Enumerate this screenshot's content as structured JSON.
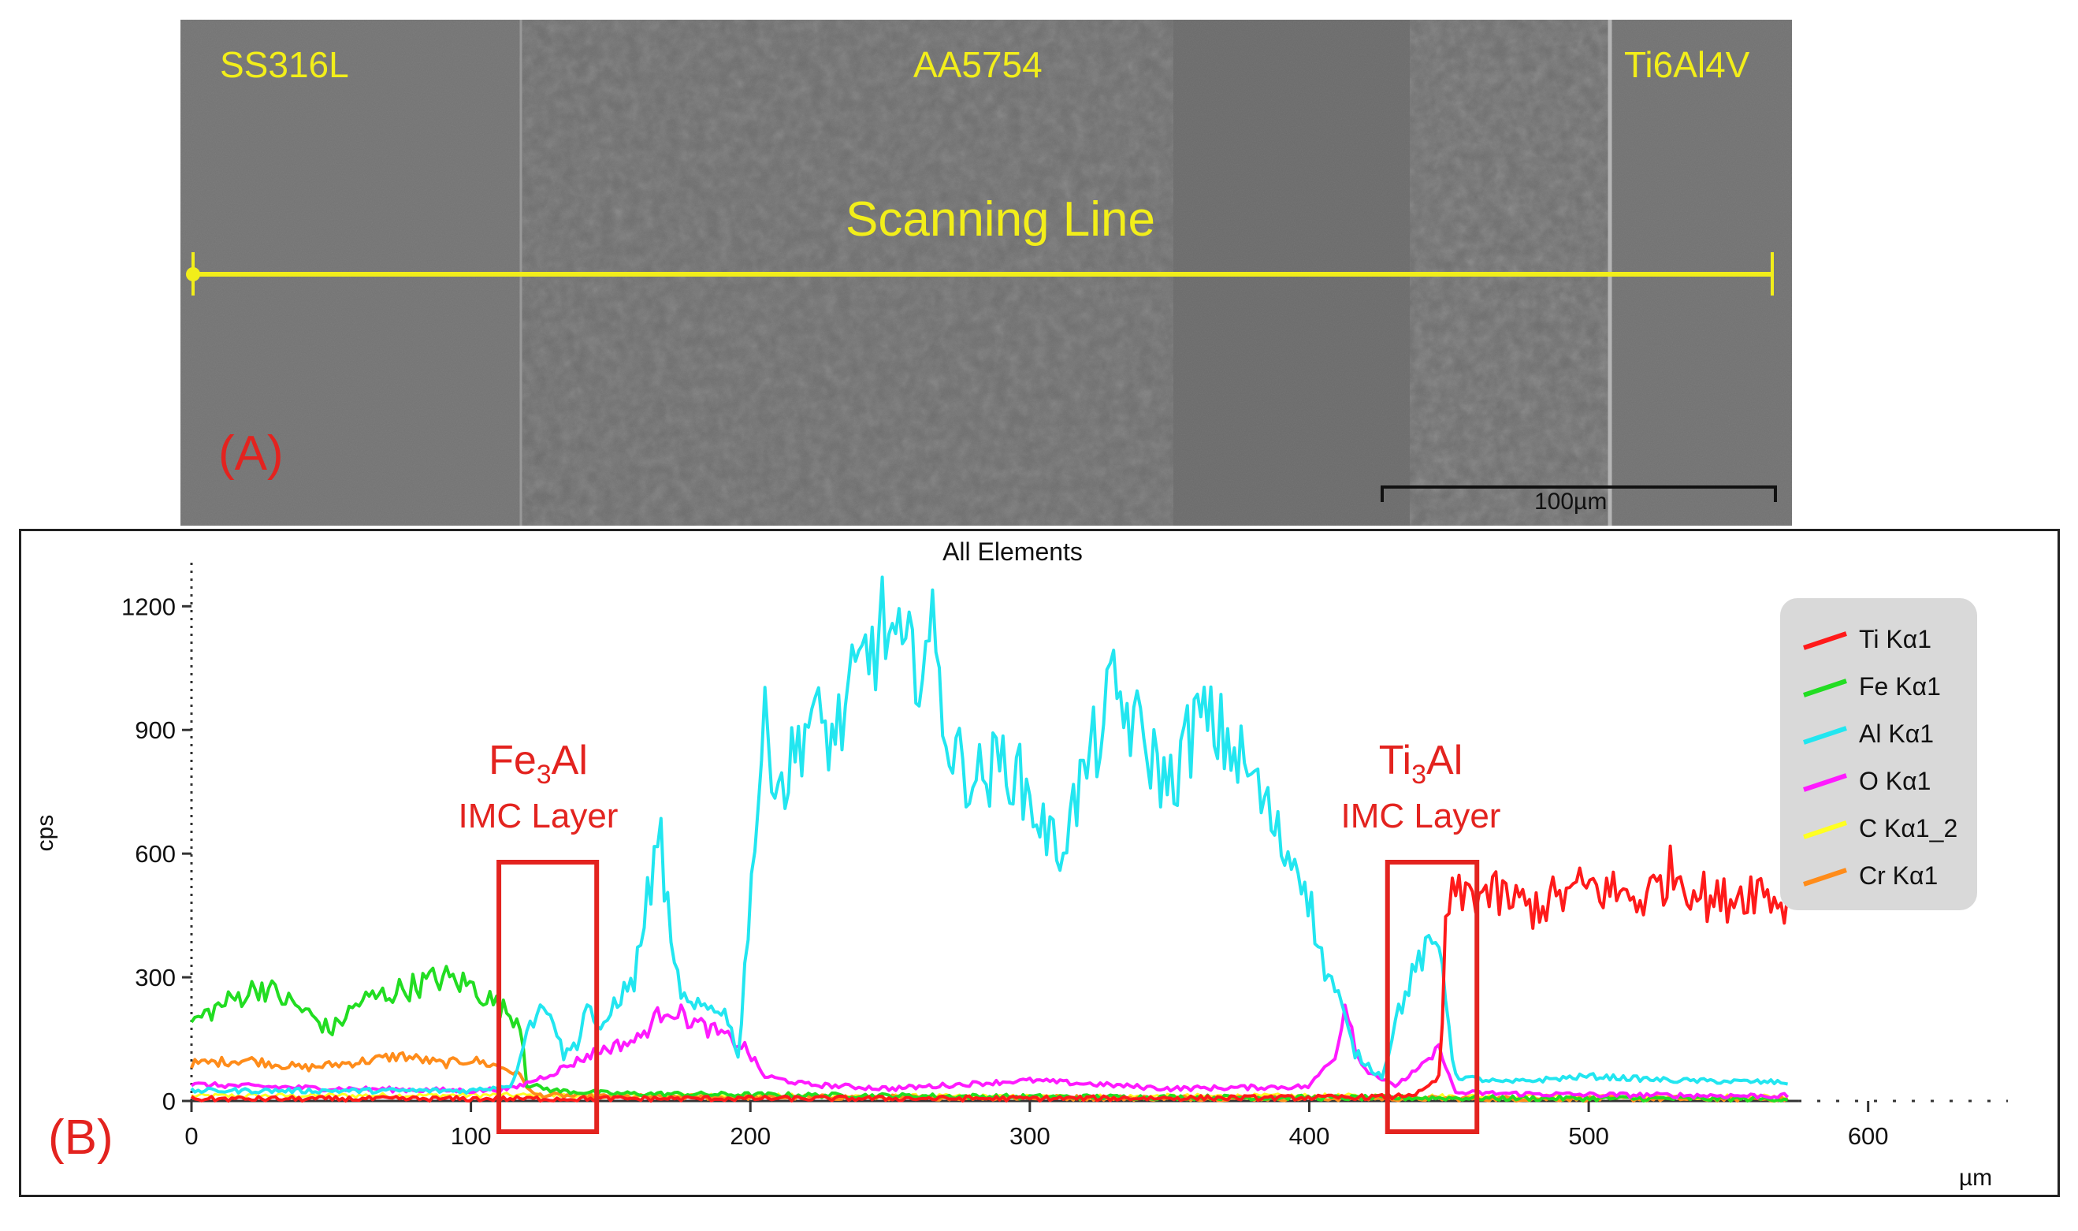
{
  "panel_a": {
    "label": "(A)",
    "material_left": "SS316L",
    "material_middle": "AA5754",
    "material_right": "Ti6Al4V",
    "scan_label": "Scanning Line",
    "scale_bar": "100µm"
  },
  "panel_b": {
    "label": "(B)",
    "annotations": [
      {
        "formula_base": "Fe",
        "formula_sub": "3",
        "formula_tail": "Al",
        "subtitle": "IMC Layer"
      },
      {
        "formula_base": "Ti",
        "formula_sub": "3",
        "formula_tail": "Al",
        "subtitle": "IMC Layer"
      }
    ]
  },
  "colors": {
    "ti": "#ff1a1a",
    "fe": "#22dd22",
    "al": "#22e6f0",
    "o": "#ff1aff",
    "c": "#ffff22",
    "cr": "#ff8c1a",
    "annotation": "#e3231f",
    "scan_line": "#f2ee1a"
  },
  "chart_data": {
    "type": "line",
    "title": "All Elements",
    "xlabel": "µm",
    "ylabel": "cps",
    "xlim": [
      0,
      650
    ],
    "ylim": [
      0,
      1300
    ],
    "xticks": [
      0,
      100,
      200,
      300,
      400,
      500,
      600
    ],
    "yticks": [
      0,
      300,
      600,
      900,
      1200
    ],
    "legend_position": "top-right",
    "highlight_regions_um": [
      [
        110,
        145
      ],
      [
        428,
        460
      ]
    ],
    "series": [
      {
        "name": "Ti Kα1",
        "key": "ti",
        "points": [
          [
            0,
            5
          ],
          [
            100,
            5
          ],
          [
            200,
            6
          ],
          [
            300,
            6
          ],
          [
            400,
            8
          ],
          [
            430,
            10
          ],
          [
            440,
            20
          ],
          [
            447,
            60
          ],
          [
            449,
            480
          ],
          [
            460,
            510
          ],
          [
            480,
            470
          ],
          [
            500,
            520
          ],
          [
            520,
            490
          ],
          [
            530,
            560
          ],
          [
            545,
            480
          ],
          [
            560,
            520
          ],
          [
            572,
            470
          ]
        ]
      },
      {
        "name": "Fe Kα1",
        "key": "fe",
        "points": [
          [
            0,
            190
          ],
          [
            10,
            230
          ],
          [
            25,
            280
          ],
          [
            40,
            220
          ],
          [
            50,
            170
          ],
          [
            60,
            240
          ],
          [
            75,
            270
          ],
          [
            90,
            300
          ],
          [
            100,
            280
          ],
          [
            110,
            230
          ],
          [
            118,
            190
          ],
          [
            120,
            40
          ],
          [
            130,
            25
          ],
          [
            150,
            18
          ],
          [
            200,
            15
          ],
          [
            300,
            10
          ],
          [
            400,
            8
          ],
          [
            572,
            5
          ]
        ]
      },
      {
        "name": "Al Kα1",
        "key": "al",
        "points": [
          [
            0,
            25
          ],
          [
            100,
            25
          ],
          [
            115,
            40
          ],
          [
            120,
            180
          ],
          [
            128,
            240
          ],
          [
            133,
            110
          ],
          [
            138,
            140
          ],
          [
            142,
            250
          ],
          [
            146,
            150
          ],
          [
            152,
            250
          ],
          [
            158,
            280
          ],
          [
            164,
            520
          ],
          [
            168,
            640
          ],
          [
            172,
            330
          ],
          [
            178,
            220
          ],
          [
            190,
            230
          ],
          [
            196,
            110
          ],
          [
            200,
            520
          ],
          [
            205,
            900
          ],
          [
            212,
            760
          ],
          [
            220,
            930
          ],
          [
            230,
            880
          ],
          [
            240,
            1050
          ],
          [
            248,
            1160
          ],
          [
            255,
            1050
          ],
          [
            265,
            1120
          ],
          [
            272,
            840
          ],
          [
            282,
            780
          ],
          [
            292,
            830
          ],
          [
            300,
            730
          ],
          [
            310,
            600
          ],
          [
            320,
            800
          ],
          [
            330,
            990
          ],
          [
            340,
            880
          ],
          [
            350,
            760
          ],
          [
            360,
            930
          ],
          [
            370,
            880
          ],
          [
            380,
            780
          ],
          [
            390,
            620
          ],
          [
            398,
            560
          ],
          [
            404,
            350
          ],
          [
            410,
            260
          ],
          [
            416,
            120
          ],
          [
            422,
            80
          ],
          [
            426,
            60
          ],
          [
            432,
            220
          ],
          [
            440,
            350
          ],
          [
            447,
            380
          ],
          [
            452,
            60
          ],
          [
            470,
            45
          ],
          [
            500,
            60
          ],
          [
            530,
            50
          ],
          [
            572,
            45
          ]
        ]
      },
      {
        "name": "O Kα1",
        "key": "o",
        "points": [
          [
            0,
            40
          ],
          [
            50,
            30
          ],
          [
            100,
            25
          ],
          [
            115,
            30
          ],
          [
            130,
            70
          ],
          [
            145,
            120
          ],
          [
            160,
            150
          ],
          [
            170,
            230
          ],
          [
            180,
            190
          ],
          [
            190,
            160
          ],
          [
            198,
            130
          ],
          [
            205,
            60
          ],
          [
            220,
            40
          ],
          [
            250,
            30
          ],
          [
            300,
            50
          ],
          [
            350,
            30
          ],
          [
            400,
            35
          ],
          [
            410,
            120
          ],
          [
            413,
            250
          ],
          [
            418,
            90
          ],
          [
            430,
            35
          ],
          [
            440,
            80
          ],
          [
            447,
            130
          ],
          [
            452,
            20
          ],
          [
            500,
            15
          ],
          [
            572,
            12
          ]
        ]
      },
      {
        "name": "C Kα1_2",
        "key": "c",
        "points": [
          [
            0,
            12
          ],
          [
            100,
            14
          ],
          [
            200,
            12
          ],
          [
            300,
            10
          ],
          [
            400,
            12
          ],
          [
            500,
            10
          ],
          [
            572,
            10
          ]
        ]
      },
      {
        "name": "Cr Kα1",
        "key": "cr",
        "points": [
          [
            0,
            90
          ],
          [
            20,
            100
          ],
          [
            40,
            80
          ],
          [
            60,
            95
          ],
          [
            75,
            110
          ],
          [
            90,
            90
          ],
          [
            100,
            100
          ],
          [
            112,
            80
          ],
          [
            118,
            60
          ],
          [
            122,
            15
          ],
          [
            150,
            10
          ],
          [
            300,
            8
          ],
          [
            450,
            6
          ],
          [
            572,
            5
          ]
        ]
      }
    ]
  }
}
